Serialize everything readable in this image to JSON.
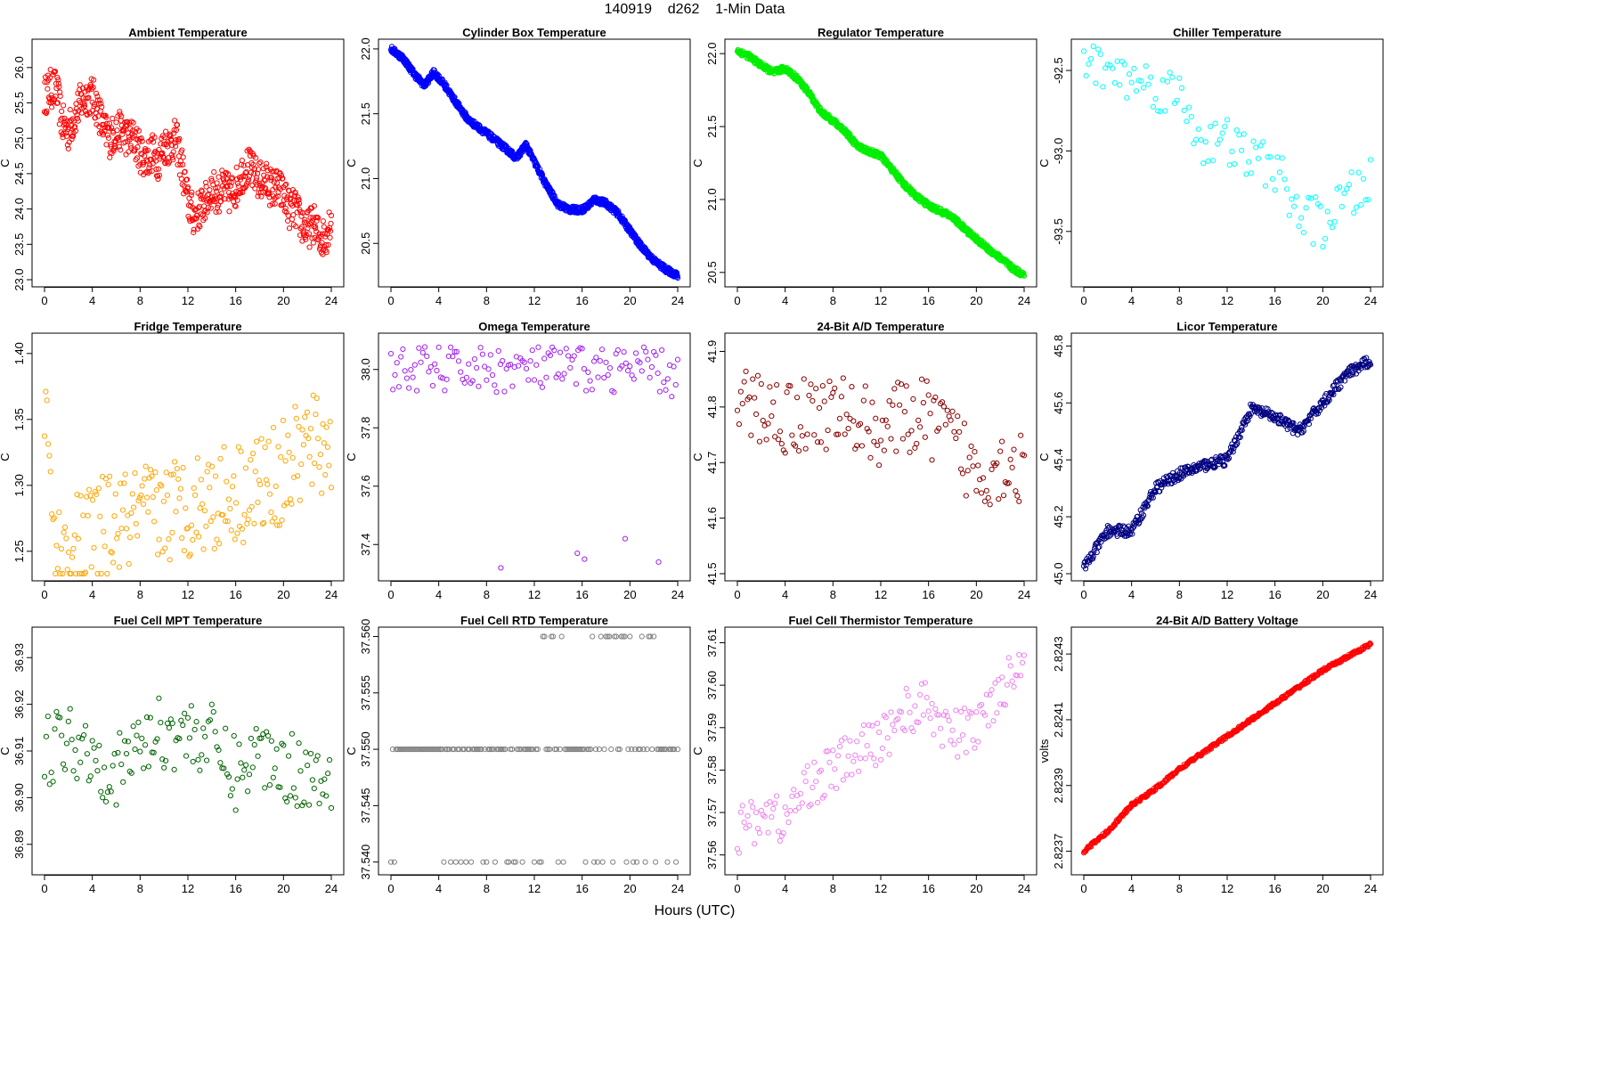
{
  "header": {
    "title": "140919    d262    1-Min Data"
  },
  "x_axis": {
    "label": "Hours (UTC)"
  },
  "chart_data": [
    {
      "type": "scatter",
      "name": "ambient",
      "title": "Ambient Temperature",
      "xlabel": "Hours (UTC)",
      "ylabel": "C",
      "color": "#ff0000",
      "xlim": [
        0,
        24
      ],
      "ylim": [
        23.0,
        26.3
      ],
      "xticks": [
        "0",
        "4",
        "8",
        "12",
        "16",
        "20",
        "24"
      ],
      "yticks": [
        "23.0",
        "23.5",
        "24.0",
        "24.5",
        "25.0",
        "25.5",
        "26.0"
      ],
      "series": [
        {
          "name": "Ambient",
          "x": [
            0,
            0.5,
            1,
            1.5,
            2,
            2.5,
            3,
            3.5,
            4,
            4.5,
            5,
            5.5,
            6,
            6.5,
            7,
            7.5,
            8,
            8.5,
            9,
            9.5,
            10,
            10.5,
            11,
            11.5,
            12,
            12.5,
            13,
            13.5,
            14,
            14.5,
            15,
            15.5,
            16,
            16.5,
            17,
            17.5,
            18,
            18.5,
            19,
            19.5,
            20,
            20.5,
            21,
            21.5,
            22,
            22.5,
            23,
            23.5,
            24
          ],
          "y": [
            25.6,
            25.7,
            25.7,
            25.2,
            25.1,
            25.3,
            25.5,
            25.6,
            25.6,
            25.4,
            25.1,
            25.0,
            25.1,
            25.1,
            25.0,
            25.0,
            24.8,
            24.7,
            24.8,
            24.7,
            24.9,
            24.9,
            25.0,
            24.6,
            24.1,
            23.9,
            24.0,
            24.1,
            24.3,
            24.2,
            24.3,
            24.2,
            24.3,
            24.5,
            24.6,
            24.5,
            24.4,
            24.4,
            24.3,
            24.3,
            24.2,
            24.0,
            24.0,
            23.8,
            23.7,
            23.8,
            23.6,
            23.6,
            23.9
          ],
          "spread": 0.28,
          "per_x": 14
        }
      ]
    },
    {
      "type": "scatter",
      "name": "cylinder-box",
      "title": "Cylinder Box Temperature",
      "xlabel": "Hours (UTC)",
      "ylabel": "C",
      "color": "#0000ff",
      "xlim": [
        0,
        24
      ],
      "ylim": [
        20.22,
        22.02
      ],
      "xticks": [
        "0",
        "4",
        "8",
        "12",
        "16",
        "20",
        "24"
      ],
      "yticks": [
        "20.5",
        "21.0",
        "21.5",
        "22.0"
      ],
      "series": [
        {
          "name": "Cylinder Box",
          "x": [
            0,
            1,
            2,
            2.8,
            3.6,
            4.5,
            5.5,
            6.5,
            8,
            9.5,
            10.5,
            11.3,
            12,
            13,
            14,
            15,
            16,
            16.5,
            17,
            18,
            19,
            20,
            21,
            22,
            23,
            24
          ],
          "y": [
            22.0,
            21.93,
            21.8,
            21.72,
            21.82,
            21.72,
            21.58,
            21.45,
            21.35,
            21.24,
            21.16,
            21.26,
            21.13,
            20.95,
            20.8,
            20.76,
            20.76,
            20.79,
            20.84,
            20.81,
            20.73,
            20.6,
            20.47,
            20.37,
            20.3,
            20.25
          ],
          "spread": 0.025,
          "per_x": 40
        }
      ]
    },
    {
      "type": "scatter",
      "name": "regulator",
      "title": "Regulator Temperature",
      "xlabel": "Hours (UTC)",
      "ylabel": "C",
      "color": "#00ee00",
      "xlim": [
        0,
        24
      ],
      "ylim": [
        20.45,
        22.05
      ],
      "xticks": [
        "0",
        "4",
        "8",
        "12",
        "16",
        "20",
        "24"
      ],
      "yticks": [
        "20.5",
        "21.0",
        "21.5",
        "22.0"
      ],
      "series": [
        {
          "name": "Regulator",
          "x": [
            0,
            1,
            2,
            3,
            4,
            5,
            6,
            7,
            8,
            9,
            10,
            11,
            12,
            13,
            14,
            15,
            16,
            17,
            18,
            19,
            20,
            21,
            22,
            23,
            24
          ],
          "y": [
            22.02,
            21.98,
            21.92,
            21.87,
            21.9,
            21.83,
            21.73,
            21.6,
            21.54,
            21.47,
            21.37,
            21.33,
            21.3,
            21.2,
            21.1,
            21.02,
            20.96,
            20.92,
            20.88,
            20.8,
            20.73,
            20.66,
            20.6,
            20.53,
            20.48
          ],
          "spread": 0.02,
          "per_x": 40
        }
      ]
    },
    {
      "type": "scatter",
      "name": "chiller",
      "title": "Chiller Temperature",
      "xlabel": "Hours (UTC)",
      "ylabel": "C",
      "color": "#00ffff",
      "xlim": [
        0,
        24
      ],
      "ylim": [
        -93.8,
        -92.35
      ],
      "xticks": [
        "0",
        "4",
        "8",
        "12",
        "16",
        "20",
        "24"
      ],
      "yticks": [
        "-93.5",
        "-93.0",
        "-92.5"
      ],
      "series": [
        {
          "name": "Chiller",
          "x": [
            0,
            2,
            4,
            6,
            8,
            10,
            12,
            14,
            16,
            18,
            20,
            22,
            24
          ],
          "y": [
            -92.42,
            -92.5,
            -92.55,
            -92.6,
            -92.65,
            -92.95,
            -92.95,
            -93.05,
            -93.1,
            -93.4,
            -93.45,
            -93.3,
            -93.2
          ],
          "spread": 0.15,
          "per_x": 10
        }
      ]
    },
    {
      "type": "scatter",
      "name": "fridge",
      "title": "Fridge Temperature",
      "xlabel": "Hours (UTC)",
      "ylabel": "C",
      "color": "#ffa500",
      "xlim": [
        0,
        24
      ],
      "ylim": [
        1.233,
        1.41
      ],
      "xticks": [
        "0",
        "4",
        "8",
        "12",
        "16",
        "20",
        "24"
      ],
      "yticks": [
        "1.25",
        "1.30",
        "1.35",
        "1.40"
      ],
      "series": [
        {
          "name": "Fridge",
          "x": [
            0,
            0.3,
            0.6,
            1,
            1.5,
            2,
            3,
            4,
            6,
            8,
            10,
            12,
            14,
            16,
            18,
            20,
            22,
            24
          ],
          "y": [
            1.365,
            1.33,
            1.28,
            1.25,
            1.245,
            1.25,
            1.255,
            1.265,
            1.27,
            1.275,
            1.28,
            1.285,
            1.29,
            1.295,
            1.3,
            1.31,
            1.33,
            1.33
          ],
          "spread": 0.04,
          "per_x": 14
        }
      ]
    },
    {
      "type": "scatter",
      "name": "omega",
      "title": "Omega Temperature",
      "xlabel": "Hours (UTC)",
      "ylabel": "C",
      "color": "#a020f0",
      "xlim": [
        0,
        24
      ],
      "ylim": [
        37.3,
        38.1
      ],
      "xticks": [
        "0",
        "4",
        "8",
        "12",
        "16",
        "20",
        "24"
      ],
      "yticks": [
        "37.4",
        "37.6",
        "37.8",
        "38.0"
      ],
      "series": [
        {
          "name": "Omega",
          "x": [
            0,
            2,
            4,
            6,
            8,
            10,
            12,
            14,
            16,
            18,
            20,
            22,
            24
          ],
          "y": [
            38.0,
            38.0,
            38.0,
            38.0,
            38.0,
            38.0,
            38.0,
            38.0,
            38.0,
            38.0,
            38.0,
            38.0,
            37.97
          ],
          "spread": 0.08,
          "per_x": 12
        }
      ],
      "outliers": {
        "x": [
          9.2,
          15.6,
          16.2,
          19.6,
          22.4
        ],
        "y": [
          37.32,
          37.37,
          37.35,
          37.42,
          37.34
        ]
      }
    },
    {
      "type": "scatter",
      "name": "ad24",
      "title": "24-Bit A/D Temperature",
      "xlabel": "Hours (UTC)",
      "ylabel": "C",
      "color": "#8b0000",
      "xlim": [
        0,
        24
      ],
      "ylim": [
        41.5,
        41.92
      ],
      "xticks": [
        "0",
        "4",
        "8",
        "12",
        "16",
        "20",
        "24"
      ],
      "yticks": [
        "41.5",
        "41.6",
        "41.7",
        "41.8",
        "41.9"
      ],
      "series": [
        {
          "name": "24-Bit A/D",
          "x": [
            0,
            2,
            4,
            6,
            8,
            10,
            12,
            14,
            16,
            18,
            20,
            22,
            24
          ],
          "y": [
            41.8,
            41.8,
            41.78,
            41.79,
            41.79,
            41.78,
            41.76,
            41.78,
            41.78,
            41.74,
            41.68,
            41.7,
            41.69
          ],
          "spread": 0.07,
          "per_x": 14
        }
      ]
    },
    {
      "type": "scatter",
      "name": "licor",
      "title": "Licor Temperature",
      "xlabel": "Hours (UTC)",
      "ylabel": "C",
      "color": "#000080",
      "xlim": [
        0,
        24
      ],
      "ylim": [
        45.0,
        45.82
      ],
      "xticks": [
        "0",
        "4",
        "8",
        "12",
        "16",
        "20",
        "24"
      ],
      "yticks": [
        "45.0",
        "45.2",
        "45.4",
        "45.6",
        "45.8"
      ],
      "series": [
        {
          "name": "Licor",
          "x": [
            0,
            2,
            4,
            6,
            8,
            10,
            12,
            14,
            16,
            18,
            20,
            22,
            24
          ],
          "y": [
            45.02,
            45.15,
            45.15,
            45.3,
            45.35,
            45.38,
            45.4,
            45.58,
            45.55,
            45.5,
            45.6,
            45.7,
            45.75
          ],
          "spread": 0.02,
          "per_x": 40
        }
      ]
    },
    {
      "type": "scatter",
      "name": "fuelcell-mpt",
      "title": "Fuel Cell MPT Temperature",
      "xlabel": "Hours (UTC)",
      "ylabel": "C",
      "color": "#006400",
      "xlim": [
        0,
        24
      ],
      "ylim": [
        36.885,
        36.935
      ],
      "xticks": [
        "0",
        "4",
        "8",
        "12",
        "16",
        "20",
        "24"
      ],
      "yticks": [
        "36.89",
        "36.90",
        "36.91",
        "36.92",
        "36.93"
      ],
      "series": [
        {
          "name": "Fuel Cell MPT",
          "x": [
            0,
            2,
            4,
            6,
            8,
            10,
            12,
            14,
            16,
            18,
            20,
            22,
            24
          ],
          "y": [
            36.91,
            36.913,
            36.91,
            36.905,
            36.912,
            36.914,
            36.914,
            36.912,
            36.905,
            36.91,
            36.907,
            36.905,
            36.905
          ],
          "spread": 0.008,
          "per_x": 14
        }
      ]
    },
    {
      "type": "scatter",
      "name": "fuelcell-rtd",
      "title": "Fuel Cell RTD Temperature",
      "xlabel": "Hours (UTC)",
      "ylabel": "C",
      "color": "#808080",
      "xlim": [
        0,
        24
      ],
      "ylim": [
        37.5395,
        37.5602
      ],
      "xticks": [
        "0",
        "4",
        "8",
        "12",
        "16",
        "20",
        "24"
      ],
      "yticks": [
        "37.540",
        "37.545",
        "37.550",
        "37.555",
        "37.560"
      ],
      "levels": [
        37.54,
        37.55,
        37.56
      ],
      "series": [
        {
          "name": "Fuel Cell RTD",
          "x": [
            0,
            2,
            4,
            6,
            8,
            10,
            12,
            14,
            16,
            18,
            20,
            22,
            24
          ],
          "y": [
            37.55,
            37.55,
            37.55,
            37.55,
            37.55,
            37.55,
            37.55,
            37.55,
            37.55,
            37.55,
            37.55,
            37.55,
            37.55
          ],
          "spread": 0.0,
          "per_x": 14
        }
      ]
    },
    {
      "type": "scatter",
      "name": "fuelcell-thermistor",
      "title": "Fuel Cell Thermistor Temperature",
      "xlabel": "Hours (UTC)",
      "ylabel": "C",
      "color": "#ee82ee",
      "xlim": [
        0,
        24
      ],
      "ylim": [
        37.557,
        37.612
      ],
      "xticks": [
        "0",
        "4",
        "8",
        "12",
        "16",
        "20",
        "24"
      ],
      "yticks": [
        "37.56",
        "37.57",
        "37.58",
        "37.59",
        "37.60",
        "37.61"
      ],
      "series": [
        {
          "name": "Fuel Cell Thermistor",
          "x": [
            0,
            2,
            4,
            6,
            8,
            10,
            12,
            14,
            16,
            18,
            20,
            22,
            24
          ],
          "y": [
            37.565,
            37.57,
            37.568,
            37.577,
            37.58,
            37.584,
            37.587,
            37.594,
            37.595,
            37.588,
            37.59,
            37.6,
            37.605
          ],
          "spread": 0.006,
          "per_x": 14
        }
      ]
    },
    {
      "type": "scatter",
      "name": "battery",
      "title": "24-Bit A/D Battery Voltage",
      "xlabel": "Hours (UTC)",
      "ylabel": "volts",
      "color": "#ff0000",
      "xlim": [
        0,
        24
      ],
      "ylim": [
        2.82365,
        2.82436
      ],
      "xticks": [
        "0",
        "4",
        "8",
        "12",
        "16",
        "20",
        "24"
      ],
      "yticks": [
        "2.8237",
        "2.8239",
        "2.8241",
        "2.8243"
      ],
      "series": [
        {
          "name": "Battery Voltage",
          "x": [
            0,
            2,
            4,
            6,
            8,
            10,
            12,
            14,
            16,
            18,
            20,
            22,
            24
          ],
          "y": [
            2.8237,
            2.82376,
            2.82384,
            2.82389,
            2.82395,
            2.824,
            2.82405,
            2.8241,
            2.82415,
            2.8242,
            2.82425,
            2.82429,
            2.82433
          ],
          "spread": 5e-06,
          "per_x": 40
        }
      ]
    }
  ]
}
